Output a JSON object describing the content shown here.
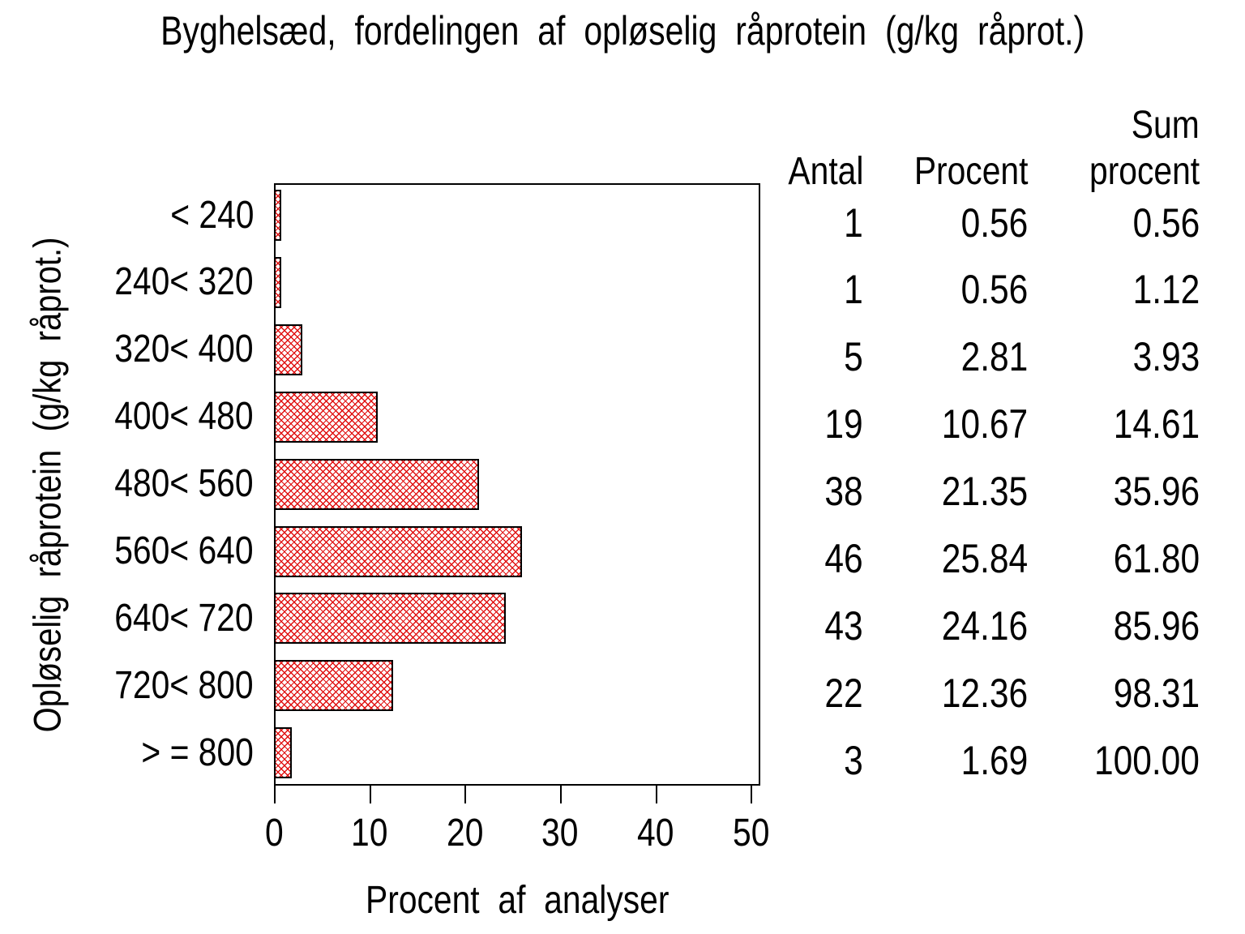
{
  "chart_data": {
    "type": "bar",
    "orientation": "horizontal",
    "title": "Byghelsæd, fordelingen af opløselig råprotein (g/kg råprot.)",
    "xlabel": "Procent af analyser",
    "ylabel": "Opløselig råprotein (g/kg råprot.)",
    "categories": [
      "< 240",
      "240< 320",
      "320< 400",
      "400< 480",
      "480< 560",
      "560< 640",
      "640< 720",
      "720< 800",
      "> = 800"
    ],
    "values": [
      0.56,
      0.56,
      2.81,
      10.67,
      21.35,
      25.84,
      24.16,
      12.36,
      1.69
    ],
    "xlim": [
      0,
      51
    ],
    "xticks": [
      "0",
      "10",
      "20",
      "30",
      "40",
      "50"
    ],
    "grid": "off",
    "bar_fill_pattern": "diagonal-crosshatch",
    "bar_pattern_color": "#e01010",
    "bar_border_color": "#000000",
    "frame": "full-box"
  },
  "table": {
    "headers": {
      "antal": "Antal",
      "procent": "Procent",
      "sum_line1": "Sum",
      "sum_line2": "procent"
    },
    "rows": [
      {
        "antal": "1",
        "procent": "0.56",
        "sum": "0.56"
      },
      {
        "antal": "1",
        "procent": "0.56",
        "sum": "1.12"
      },
      {
        "antal": "5",
        "procent": "2.81",
        "sum": "3.93"
      },
      {
        "antal": "19",
        "procent": "10.67",
        "sum": "14.61"
      },
      {
        "antal": "38",
        "procent": "21.35",
        "sum": "35.96"
      },
      {
        "antal": "46",
        "procent": "25.84",
        "sum": "61.80"
      },
      {
        "antal": "43",
        "procent": "24.16",
        "sum": "85.96"
      },
      {
        "antal": "22",
        "procent": "12.36",
        "sum": "98.31"
      },
      {
        "antal": "3",
        "procent": "1.69",
        "sum": "100.00"
      }
    ]
  }
}
